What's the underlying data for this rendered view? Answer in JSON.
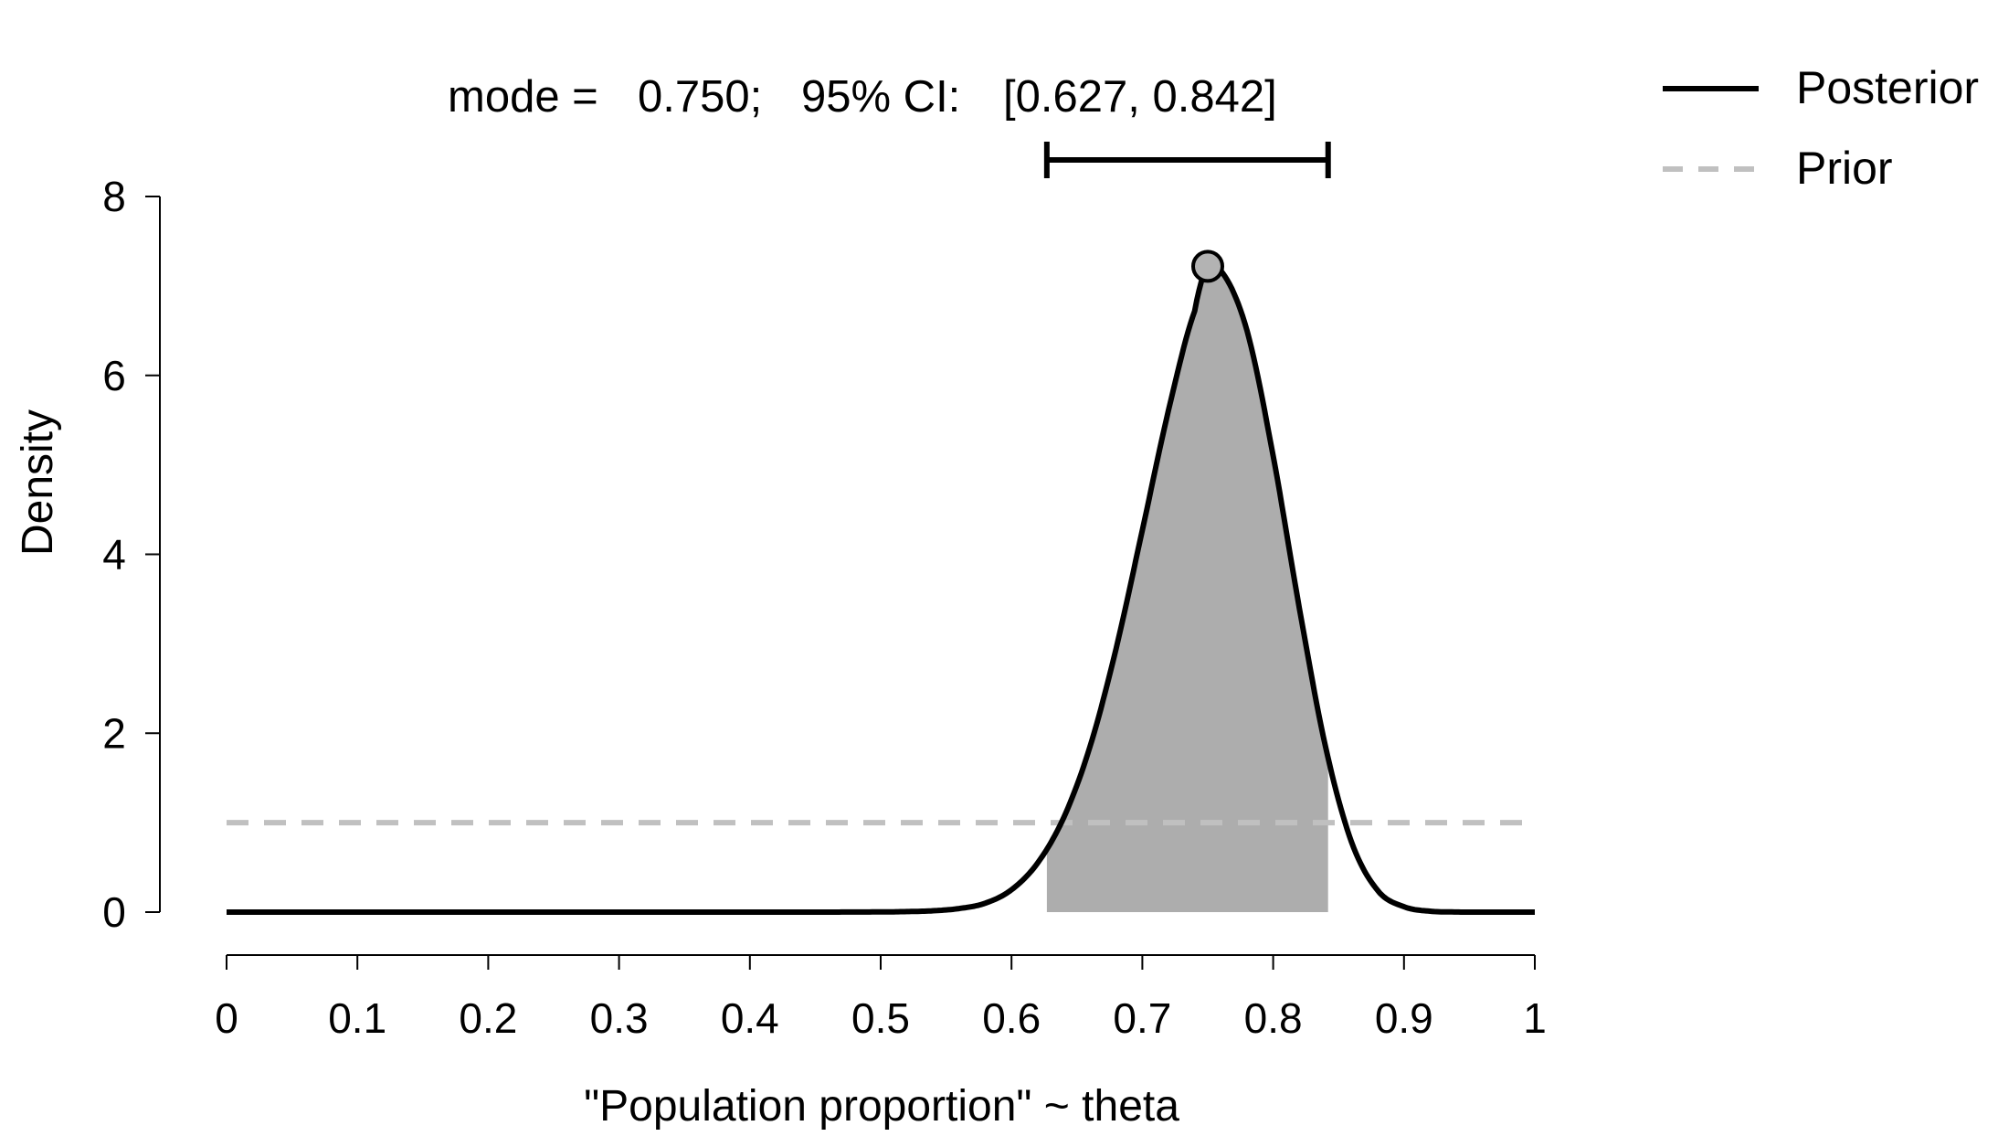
{
  "chart_data": {
    "type": "area",
    "title": "mode = 0.750; 95% CI: [0.627, 0.842]",
    "header": {
      "mode_label": "mode =",
      "mode_value": "0.750;",
      "ci_label": "95% CI:",
      "ci_value": "[0.627, 0.842]"
    },
    "xlabel": "\"Population proportion\" ~ theta",
    "ylabel": "Density",
    "xlim": [
      0,
      1
    ],
    "ylim": [
      0,
      8
    ],
    "x_ticks": [
      0,
      0.1,
      0.2,
      0.3,
      0.4,
      0.5,
      0.6,
      0.7,
      0.8,
      0.9,
      1
    ],
    "x_tick_labels": [
      "0",
      "0.1",
      "0.2",
      "0.3",
      "0.4",
      "0.5",
      "0.6",
      "0.7",
      "0.8",
      "0.9",
      "1"
    ],
    "y_ticks": [
      0,
      2,
      4,
      6,
      8
    ],
    "y_tick_labels": [
      "0",
      "2",
      "4",
      "6",
      "8"
    ],
    "mode": 0.75,
    "mode_density": 7.22,
    "ci": [
      0.627,
      0.842
    ],
    "legend_position": "top-right",
    "grid": false,
    "series": [
      {
        "name": "Posterior",
        "style": "solid",
        "color": "#000000",
        "x": [
          0,
          0.05,
          0.1,
          0.15,
          0.2,
          0.25,
          0.3,
          0.35,
          0.4,
          0.45,
          0.5,
          0.52,
          0.54,
          0.56,
          0.58,
          0.6,
          0.62,
          0.64,
          0.66,
          0.68,
          0.7,
          0.72,
          0.74,
          0.75,
          0.76,
          0.78,
          0.8,
          0.82,
          0.84,
          0.86,
          0.88,
          0.9,
          0.92,
          0.94,
          0.96,
          0.98,
          1
        ],
        "y": [
          0,
          0,
          0,
          0,
          0,
          0,
          0,
          0,
          0,
          0,
          0.002,
          0.006,
          0.015,
          0.04,
          0.1,
          0.25,
          0.55,
          1.06,
          1.85,
          2.95,
          4.27,
          5.61,
          6.72,
          7.22,
          7.17,
          6.5,
          5.1,
          3.4,
          1.85,
          0.78,
          0.24,
          0.06,
          0.01,
          0.001,
          0,
          0,
          0
        ]
      },
      {
        "name": "Prior",
        "style": "dashed",
        "color": "#c0c0c0",
        "x": [
          0,
          1
        ],
        "y": [
          1,
          1
        ]
      }
    ],
    "ci_fill_color": "#adadad",
    "mode_point_color": "#b3b3b3"
  }
}
